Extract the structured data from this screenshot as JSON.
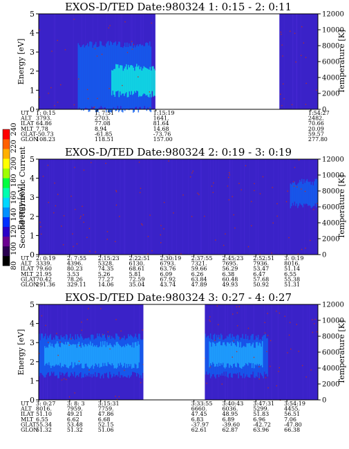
{
  "colorbar": {
    "label": "Second Harmonic Current",
    "ticks": [
      240,
      220,
      200,
      180,
      160,
      140,
      120,
      100,
      80
    ],
    "colors": [
      "#000000",
      "#2a0050",
      "#6a0090",
      "#2a00c8",
      "#0030ff",
      "#0090ff",
      "#00d8ff",
      "#00ffb0",
      "#00ff40",
      "#a0ff00",
      "#ffff00",
      "#ffb000",
      "#ff6000",
      "#ff0000"
    ]
  },
  "colors": {
    "background": "#3a22c8",
    "band_blue": "#1060f0",
    "band_light": "#20a8ff",
    "band_cyan": "#10e8e0",
    "speckle": "#c03020",
    "gap": "#ffffff"
  },
  "chart_data": [
    {
      "type": "heatmap",
      "title": "EXOS-D/TED   Date:980324  1: 0:15 - 2: 0:11",
      "ylabel": "Energy [eV]",
      "ylabel_right": "Temperature [K]",
      "ylim": [
        0,
        5
      ],
      "yticks": [
        "0",
        "1",
        "2",
        "3",
        "4",
        "5"
      ],
      "ylim_right": [
        0,
        12000
      ],
      "yticks_right": [
        "0",
        "2000",
        "4000",
        "6000",
        "8000",
        "10000",
        "12000"
      ],
      "data_gaps": [
        [
          0.418,
          0.862
        ]
      ],
      "features": [
        {
          "kind": "band",
          "x": [
            0.14,
            0.4
          ],
          "y": [
            0.0,
            3.4
          ],
          "color": "band_blue"
        },
        {
          "kind": "band",
          "x": [
            0.26,
            0.42
          ],
          "y": [
            0.8,
            2.2
          ],
          "color": "band_cyan"
        }
      ],
      "ephemeris": {
        "labels": [
          "UT",
          "ALT",
          "ILAT",
          "MLT",
          "GLAT",
          "GLON"
        ],
        "columns": [
          {
            "pos": 0.0,
            "values": [
              "1: 0:15",
              "3793.",
              "64.86",
              "7.78",
              "-50.73",
              "108.23"
            ]
          },
          {
            "pos": 0.21,
            "values": [
              "1: 7:51",
              "2703.",
              "77.08",
              "8.94",
              "-61.85",
              "118.51"
            ]
          },
          {
            "pos": 0.42,
            "values": [
              "1:15:19",
              "1641.",
              "81.64",
              "14.68",
              "-73.76",
              "157.00"
            ]
          },
          {
            "pos": 0.975,
            "values": [
              "1:54:27",
              "2482.",
              "70.66",
              "20.09",
              "59.57",
              "277.80"
            ]
          }
        ]
      }
    },
    {
      "type": "heatmap",
      "title": "EXOS-D/TED   Date:980324  2: 0:19 - 3: 0:19",
      "ylabel": "Energy [eV]",
      "ylabel_right": "Temperature [K]",
      "ylim": [
        0,
        5
      ],
      "yticks": [
        "0",
        "1",
        "2",
        "3",
        "4",
        "5"
      ],
      "ylim_right": [
        0,
        12000
      ],
      "yticks_right": [
        "0",
        "2000",
        "4000",
        "6000",
        "8000",
        "10000",
        "12000"
      ],
      "data_gaps": [],
      "features": [
        {
          "kind": "band",
          "x": [
            0.9,
            1.0
          ],
          "y": [
            2.6,
            3.8
          ],
          "color": "band_blue"
        }
      ],
      "ephemeris": {
        "labels": [
          "UT",
          "ALT",
          "ILAT",
          "MLT",
          "GLAT",
          "GLON"
        ],
        "columns": [
          {
            "pos": 0.0,
            "values": [
              "2: 0:19",
              "3339.",
              "79.60",
              "21.95",
              "70.42",
              "291.36"
            ]
          },
          {
            "pos": 0.111,
            "values": [
              "2: 7:55",
              "4396.",
              "80.23",
              "3.53",
              "78.26",
              "329.11"
            ]
          },
          {
            "pos": 0.222,
            "values": [
              "2:15:23",
              "5328.",
              "74.35",
              "5.26",
              "77.27",
              "14.06"
            ]
          },
          {
            "pos": 0.333,
            "values": [
              "2:22:51",
              "6130.",
              "68.61",
              "5.81",
              "72.59",
              "35.04"
            ]
          },
          {
            "pos": 0.444,
            "values": [
              "2:30:19",
              "6793.",
              "63.76",
              "6.09",
              "67.92",
              "43.74"
            ]
          },
          {
            "pos": 0.556,
            "values": [
              "2:37:55",
              "7321.",
              "59.66",
              "6.26",
              "63.84",
              "47.89"
            ]
          },
          {
            "pos": 0.667,
            "values": [
              "2:45:23",
              "7695.",
              "56.29",
              "6.38",
              "60.48",
              "49.93"
            ]
          },
          {
            "pos": 0.778,
            "values": [
              "2:52:51",
              "7936.",
              "53.47",
              "6.47",
              "57.68",
              "50.92"
            ]
          },
          {
            "pos": 0.889,
            "values": [
              "3: 0:19",
              "8016.",
              "51.14",
              "6.55",
              "55.38",
              "51.31"
            ]
          }
        ]
      }
    },
    {
      "type": "heatmap",
      "title": "EXOS-D/TED   Date:980324  3: 0:27 - 4: 0:27",
      "ylabel": "Energy [eV]",
      "ylabel_right": "Temperature [K]",
      "ylim": [
        0,
        5
      ],
      "yticks": [
        "0",
        "1",
        "2",
        "3",
        "4",
        "5"
      ],
      "ylim_right": [
        0,
        12000
      ],
      "yticks_right": [
        "0",
        "2000",
        "4000",
        "6000",
        "8000",
        "10000",
        "12000"
      ],
      "data_gaps": [
        [
          0.375,
          0.595
        ]
      ],
      "features": [
        {
          "kind": "band",
          "x": [
            0.0,
            0.375
          ],
          "y": [
            1.3,
            3.3
          ],
          "color": "band_blue"
        },
        {
          "kind": "band",
          "x": [
            0.02,
            0.36
          ],
          "y": [
            1.8,
            2.9
          ],
          "color": "band_light"
        },
        {
          "kind": "band",
          "x": [
            0.595,
            0.82
          ],
          "y": [
            1.3,
            3.3
          ],
          "color": "band_blue"
        },
        {
          "kind": "band",
          "x": [
            0.61,
            0.8
          ],
          "y": [
            1.8,
            2.9
          ],
          "color": "band_light"
        }
      ],
      "ephemeris": {
        "labels": [
          "UT",
          "ALT",
          "ILAT",
          "MLT",
          "GLAT",
          "GLON"
        ],
        "columns": [
          {
            "pos": 0.0,
            "values": [
              "3: 0:27",
              "8016.",
              "51.10",
              "6.55",
              "55.34",
              "51.32"
            ]
          },
          {
            "pos": 0.111,
            "values": [
              "3: 8: 3",
              "7959.",
              "49.21",
              "6.62",
              "53.48",
              "51.32"
            ]
          },
          {
            "pos": 0.222,
            "values": [
              "3:15:31",
              "7759.",
              "47.86",
              "6.68",
              "52.15",
              "51.06"
            ]
          },
          {
            "pos": 0.556,
            "values": [
              "3:33:55",
              "6660.",
              "47.45",
              "6.83",
              "-37.97",
              "62.61"
            ]
          },
          {
            "pos": 0.667,
            "values": [
              "3:40:43",
              "6036.",
              "48.95",
              "6.89",
              "-39.60",
              "62.87"
            ]
          },
          {
            "pos": 0.778,
            "values": [
              "3:47:31",
              "5299.",
              "51.83",
              "6.96",
              "-42.72",
              "63.96"
            ]
          },
          {
            "pos": 0.889,
            "values": [
              "3:54:19",
              "4455.",
              "56.51",
              "7.06",
              "-47.80",
              "66.38"
            ]
          }
        ]
      }
    }
  ]
}
